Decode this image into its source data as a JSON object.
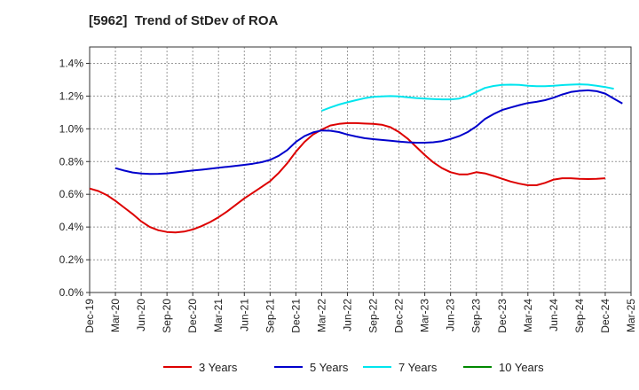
{
  "chart_data": {
    "type": "line",
    "title": "[5962]  Trend of StDev of ROA",
    "x_ticks": [
      "Dec-19",
      "Mar-20",
      "Jun-20",
      "Sep-20",
      "Dec-20",
      "Mar-21",
      "Jun-21",
      "Sep-21",
      "Dec-21",
      "Mar-22",
      "Jun-22",
      "Sep-22",
      "Dec-22",
      "Mar-23",
      "Jun-23",
      "Sep-23",
      "Dec-23",
      "Mar-24",
      "Jun-24",
      "Sep-24",
      "Dec-24",
      "Mar-25"
    ],
    "y_ticks": [
      "0.0%",
      "0.2%",
      "0.4%",
      "0.6%",
      "0.8%",
      "1.0%",
      "1.2%",
      "1.4%"
    ],
    "ylim": [
      0,
      1.5
    ],
    "grid": true,
    "legend_position": "bottom",
    "series": [
      {
        "name": "3 Years",
        "color": "#dd0000",
        "points": [
          [
            "Dec-19",
            0.635
          ],
          [
            "Jan-20",
            0.62
          ],
          [
            "Feb-20",
            0.595
          ],
          [
            "Mar-20",
            0.56
          ],
          [
            "Apr-20",
            0.52
          ],
          [
            "May-20",
            0.48
          ],
          [
            "Jun-20",
            0.435
          ],
          [
            "Jul-20",
            0.4
          ],
          [
            "Aug-20",
            0.38
          ],
          [
            "Sep-20",
            0.37
          ],
          [
            "Oct-20",
            0.367
          ],
          [
            "Nov-20",
            0.372
          ],
          [
            "Dec-20",
            0.385
          ],
          [
            "Jan-21",
            0.405
          ],
          [
            "Feb-21",
            0.43
          ],
          [
            "Mar-21",
            0.46
          ],
          [
            "Apr-21",
            0.495
          ],
          [
            "May-21",
            0.535
          ],
          [
            "Jun-21",
            0.575
          ],
          [
            "Jul-21",
            0.61
          ],
          [
            "Aug-21",
            0.645
          ],
          [
            "Sep-21",
            0.68
          ],
          [
            "Oct-21",
            0.73
          ],
          [
            "Nov-21",
            0.79
          ],
          [
            "Dec-21",
            0.86
          ],
          [
            "Jan-22",
            0.92
          ],
          [
            "Feb-22",
            0.965
          ],
          [
            "Mar-22",
            0.995
          ],
          [
            "Apr-22",
            1.02
          ],
          [
            "May-22",
            1.03
          ],
          [
            "Jun-22",
            1.035
          ],
          [
            "Jul-22",
            1.035
          ],
          [
            "Aug-22",
            1.032
          ],
          [
            "Sep-22",
            1.03
          ],
          [
            "Oct-22",
            1.025
          ],
          [
            "Nov-22",
            1.01
          ],
          [
            "Dec-22",
            0.98
          ],
          [
            "Jan-23",
            0.94
          ],
          [
            "Feb-23",
            0.89
          ],
          [
            "Mar-23",
            0.84
          ],
          [
            "Apr-23",
            0.795
          ],
          [
            "May-23",
            0.76
          ],
          [
            "Jun-23",
            0.735
          ],
          [
            "Jul-23",
            0.722
          ],
          [
            "Aug-23",
            0.722
          ],
          [
            "Sep-23",
            0.735
          ],
          [
            "Oct-23",
            0.728
          ],
          [
            "Nov-23",
            0.712
          ],
          [
            "Dec-23",
            0.695
          ],
          [
            "Jan-24",
            0.678
          ],
          [
            "Feb-24",
            0.665
          ],
          [
            "Mar-24",
            0.655
          ],
          [
            "Apr-24",
            0.655
          ],
          [
            "May-24",
            0.67
          ],
          [
            "Jun-24",
            0.69
          ],
          [
            "Jul-24",
            0.698
          ],
          [
            "Aug-24",
            0.698
          ],
          [
            "Sep-24",
            0.695
          ],
          [
            "Oct-24",
            0.693
          ],
          [
            "Nov-24",
            0.695
          ],
          [
            "Dec-24",
            0.698
          ]
        ]
      },
      {
        "name": "5 Years",
        "color": "#0000cc",
        "points": [
          [
            "Mar-20",
            0.76
          ],
          [
            "Apr-20",
            0.745
          ],
          [
            "May-20",
            0.733
          ],
          [
            "Jun-20",
            0.727
          ],
          [
            "Jul-20",
            0.724
          ],
          [
            "Aug-20",
            0.725
          ],
          [
            "Sep-20",
            0.728
          ],
          [
            "Oct-20",
            0.733
          ],
          [
            "Nov-20",
            0.739
          ],
          [
            "Dec-20",
            0.745
          ],
          [
            "Jan-21",
            0.75
          ],
          [
            "Feb-21",
            0.756
          ],
          [
            "Mar-21",
            0.762
          ],
          [
            "Apr-21",
            0.768
          ],
          [
            "May-21",
            0.774
          ],
          [
            "Jun-21",
            0.78
          ],
          [
            "Jul-21",
            0.787
          ],
          [
            "Aug-21",
            0.796
          ],
          [
            "Sep-21",
            0.81
          ],
          [
            "Oct-21",
            0.835
          ],
          [
            "Nov-21",
            0.87
          ],
          [
            "Dec-21",
            0.92
          ],
          [
            "Jan-22",
            0.955
          ],
          [
            "Feb-22",
            0.978
          ],
          [
            "Mar-22",
            0.99
          ],
          [
            "Apr-22",
            0.988
          ],
          [
            "May-22",
            0.98
          ],
          [
            "Jun-22",
            0.965
          ],
          [
            "Jul-22",
            0.953
          ],
          [
            "Aug-22",
            0.943
          ],
          [
            "Sep-22",
            0.937
          ],
          [
            "Oct-22",
            0.932
          ],
          [
            "Nov-22",
            0.927
          ],
          [
            "Dec-22",
            0.922
          ],
          [
            "Jan-23",
            0.918
          ],
          [
            "Feb-23",
            0.915
          ],
          [
            "Mar-23",
            0.915
          ],
          [
            "Apr-23",
            0.918
          ],
          [
            "May-23",
            0.925
          ],
          [
            "Jun-23",
            0.938
          ],
          [
            "Jul-23",
            0.955
          ],
          [
            "Aug-23",
            0.98
          ],
          [
            "Sep-23",
            1.015
          ],
          [
            "Oct-23",
            1.06
          ],
          [
            "Nov-23",
            1.09
          ],
          [
            "Dec-23",
            1.115
          ],
          [
            "Jan-24",
            1.13
          ],
          [
            "Feb-24",
            1.145
          ],
          [
            "Mar-24",
            1.158
          ],
          [
            "Apr-24",
            1.165
          ],
          [
            "May-24",
            1.175
          ],
          [
            "Jun-24",
            1.19
          ],
          [
            "Jul-24",
            1.21
          ],
          [
            "Aug-24",
            1.225
          ],
          [
            "Sep-24",
            1.232
          ],
          [
            "Oct-24",
            1.235
          ],
          [
            "Nov-24",
            1.23
          ],
          [
            "Dec-24",
            1.215
          ],
          [
            "Jan-25",
            1.185
          ],
          [
            "Feb-25",
            1.155
          ]
        ]
      },
      {
        "name": "7 Years",
        "color": "#00e5ee",
        "points": [
          [
            "Mar-22",
            1.11
          ],
          [
            "Apr-22",
            1.13
          ],
          [
            "May-22",
            1.148
          ],
          [
            "Jun-22",
            1.162
          ],
          [
            "Jul-22",
            1.175
          ],
          [
            "Aug-22",
            1.187
          ],
          [
            "Sep-22",
            1.195
          ],
          [
            "Oct-22",
            1.198
          ],
          [
            "Nov-22",
            1.2
          ],
          [
            "Dec-22",
            1.198
          ],
          [
            "Jan-23",
            1.193
          ],
          [
            "Feb-23",
            1.188
          ],
          [
            "Mar-23",
            1.185
          ],
          [
            "Apr-23",
            1.182
          ],
          [
            "May-23",
            1.18
          ],
          [
            "Jun-23",
            1.18
          ],
          [
            "Jul-23",
            1.185
          ],
          [
            "Aug-23",
            1.2
          ],
          [
            "Sep-23",
            1.225
          ],
          [
            "Oct-23",
            1.25
          ],
          [
            "Nov-23",
            1.262
          ],
          [
            "Dec-23",
            1.268
          ],
          [
            "Jan-24",
            1.27
          ],
          [
            "Feb-24",
            1.268
          ],
          [
            "Mar-24",
            1.263
          ],
          [
            "Apr-24",
            1.26
          ],
          [
            "May-24",
            1.26
          ],
          [
            "Jun-24",
            1.263
          ],
          [
            "Jul-24",
            1.267
          ],
          [
            "Aug-24",
            1.27
          ],
          [
            "Sep-24",
            1.272
          ],
          [
            "Oct-24",
            1.27
          ],
          [
            "Nov-24",
            1.263
          ],
          [
            "Dec-24",
            1.255
          ],
          [
            "Jan-25",
            1.245
          ]
        ]
      },
      {
        "name": "10 Years",
        "color": "#008800",
        "points": []
      }
    ]
  }
}
